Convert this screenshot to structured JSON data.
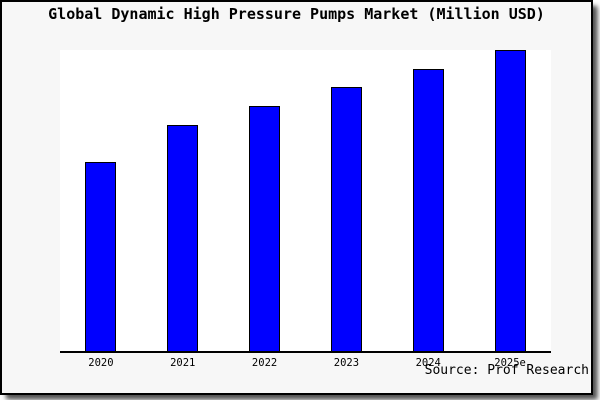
{
  "chart_data": {
    "type": "bar",
    "title": "Global Dynamic High Pressure Pumps Market (Million USD)",
    "categories": [
      "2020",
      "2021",
      "2022",
      "2023",
      "2024",
      "2025e"
    ],
    "values": [
      0.628,
      0.751,
      0.814,
      0.877,
      0.937,
      1.0
    ],
    "value_scale": "relative bar heights (fraction of 2025e bar); no numeric y-axis labels are shown in the chart",
    "series_name": "Global Dynamic High Pressure Pumps Market",
    "xlabel": "",
    "ylabel": "",
    "ylim": [
      0,
      1
    ],
    "grid": false,
    "legend": false,
    "y_axis_shown": false,
    "source_note": "Source: Prof Research",
    "colors": {
      "bar_fill": "#0000ff",
      "bar_border": "#000000",
      "plot_background": "#ffffff",
      "canvas_background": "#f7f7f7",
      "axis_line": "#000000",
      "title_text": "#000000",
      "frame_border": "#000000"
    }
  }
}
